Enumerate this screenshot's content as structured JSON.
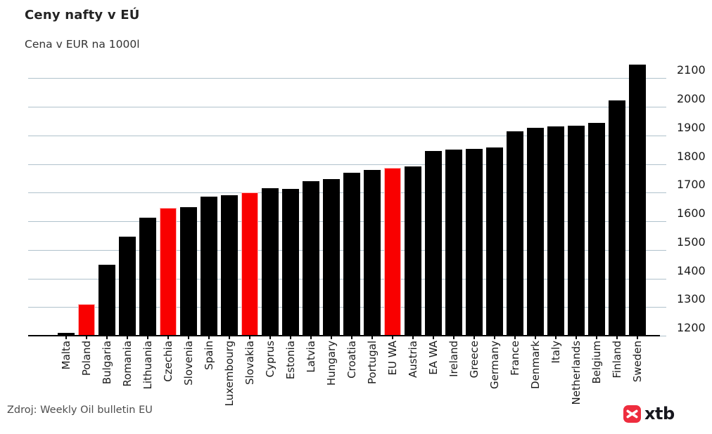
{
  "header": {
    "title": "Ceny nafty v EÚ",
    "subtitle": "Cena v EUR na 1000l"
  },
  "footer": {
    "source": "Zdroj: Weekly Oil bulletin EU",
    "brand_text": "xtb",
    "brand_color": "#ee2d3e"
  },
  "chart_data": {
    "type": "bar",
    "title": "Ceny nafty v EÚ",
    "subtitle": "Cena v EUR na 1000l",
    "categories": [
      "Malta",
      "Poland",
      "Bulgaria",
      "Romania",
      "Lithuania",
      "Czechia",
      "Slovenia",
      "Spain",
      "Luxembourg",
      "Slovakia",
      "Cyprus",
      "Estonia",
      "Latvia",
      "Hungary",
      "Croatia",
      "Portugal",
      "EU WA",
      "Austria",
      "EA WA",
      "Ireland",
      "Greece",
      "Germany",
      "France",
      "Denmark",
      "Italy",
      "Netherlands",
      "Belgium",
      "Finland",
      "Sweden"
    ],
    "values": [
      1210,
      1310,
      1448,
      1545,
      1612,
      1648,
      1650,
      1686,
      1692,
      1702,
      1716,
      1714,
      1740,
      1747,
      1770,
      1780,
      1788,
      1792,
      1846,
      1850,
      1853,
      1858,
      1914,
      1926,
      1931,
      1935,
      1945,
      2022,
      2148
    ],
    "highlighted_categories": [
      "Poland",
      "Czechia",
      "Slovakia",
      "EU WA"
    ],
    "bar_color": "#000000",
    "highlight_color": "#f90000",
    "highlight_edge_color": "#ffb5b5",
    "grid_color": "#b0c2cc",
    "axis_color": "#000000",
    "ylim": [
      1200,
      2165
    ],
    "yticks": [
      1200,
      1300,
      1400,
      1500,
      1600,
      1700,
      1800,
      1900,
      2000,
      2100
    ],
    "y_axis_side": "right",
    "x_label_rotation": 90,
    "grid": true,
    "legend": "none",
    "source": "Zdroj: Weekly Oil bulletin EU"
  }
}
